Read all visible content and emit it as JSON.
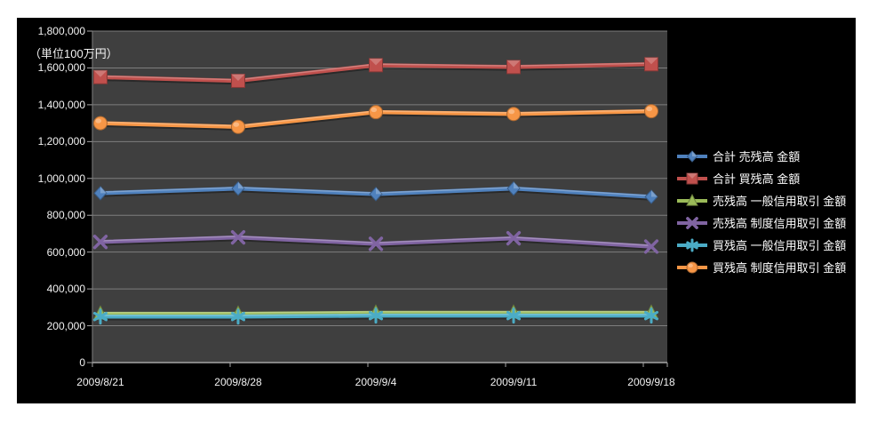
{
  "chart_data": {
    "type": "line",
    "title": "",
    "unit_note": "（単位100万円）",
    "categories": [
      "2009/8/21",
      "2009/8/28",
      "2009/9/4",
      "2009/9/11",
      "2009/9/18"
    ],
    "y_axis": {
      "min": 0,
      "max": 1800000,
      "step": 200000,
      "tick_labels": [
        "0",
        "200,000",
        "400,000",
        "600,000",
        "800,000",
        "1,000,000",
        "1,200,000",
        "1,400,000",
        "1,600,000",
        "1,800,000"
      ]
    },
    "series": [
      {
        "name": "合計 売残高 金額",
        "marker": "diamond",
        "color": "#4F81BD",
        "values": [
          920000,
          945000,
          915000,
          945000,
          900000
        ]
      },
      {
        "name": "合計 買残高 金額",
        "marker": "square",
        "color": "#C0504D",
        "values": [
          1550000,
          1530000,
          1615000,
          1605000,
          1620000
        ]
      },
      {
        "name": "売残高 一般信用取引 金額",
        "marker": "triangle",
        "color": "#9BBB59",
        "values": [
          265000,
          265000,
          270000,
          270000,
          270000
        ]
      },
      {
        "name": "売残高 制度信用取引 金額",
        "marker": "x",
        "color": "#8064A2",
        "values": [
          655000,
          680000,
          645000,
          675000,
          630000
        ]
      },
      {
        "name": "買残高 一般信用取引 金額",
        "marker": "asterisk",
        "color": "#4BACC6",
        "values": [
          250000,
          250000,
          255000,
          255000,
          255000
        ]
      },
      {
        "name": "買残高 制度信用取引 金額",
        "marker": "circle",
        "color": "#F79646",
        "values": [
          1300000,
          1280000,
          1360000,
          1350000,
          1365000
        ]
      }
    ],
    "legend_position": "right",
    "grid": true,
    "colors": {
      "chart_bg": "#000000",
      "plot_bg": "#3F3F3F",
      "gridline": "#7E7E7E",
      "axis": "#A6A6A6",
      "text": "#F2F2F2"
    }
  }
}
